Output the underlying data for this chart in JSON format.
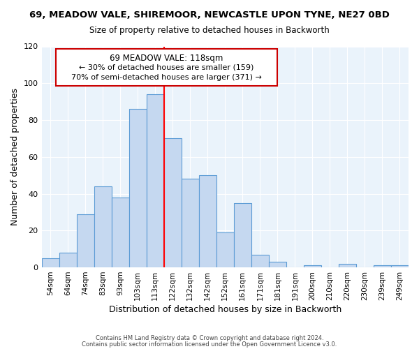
{
  "title": "69, MEADOW VALE, SHIREMOOR, NEWCASTLE UPON TYNE, NE27 0BD",
  "subtitle": "Size of property relative to detached houses in Backworth",
  "xlabel": "Distribution of detached houses by size in Backworth",
  "ylabel": "Number of detached properties",
  "categories": [
    "54sqm",
    "64sqm",
    "74sqm",
    "83sqm",
    "93sqm",
    "103sqm",
    "113sqm",
    "122sqm",
    "132sqm",
    "142sqm",
    "152sqm",
    "161sqm",
    "171sqm",
    "181sqm",
    "191sqm",
    "200sqm",
    "210sqm",
    "220sqm",
    "230sqm",
    "239sqm",
    "249sqm"
  ],
  "values": [
    5,
    8,
    29,
    44,
    38,
    86,
    94,
    70,
    48,
    50,
    19,
    35,
    7,
    3,
    0,
    1,
    0,
    2,
    0,
    1,
    1
  ],
  "bar_color": "#c5d8f0",
  "bar_edge_color": "#5b9bd5",
  "vline_x": 6.5,
  "vline_color": "red",
  "annotation_title": "69 MEADOW VALE: 118sqm",
  "annotation_line1": "← 30% of detached houses are smaller (159)",
  "annotation_line2": "70% of semi-detached houses are larger (371) →",
  "annotation_box_edge": "#cc0000",
  "ylim": [
    0,
    120
  ],
  "yticks": [
    0,
    20,
    40,
    60,
    80,
    100,
    120
  ],
  "footer1": "Contains HM Land Registry data © Crown copyright and database right 2024.",
  "footer2": "Contains public sector information licensed under the Open Government Licence v3.0."
}
